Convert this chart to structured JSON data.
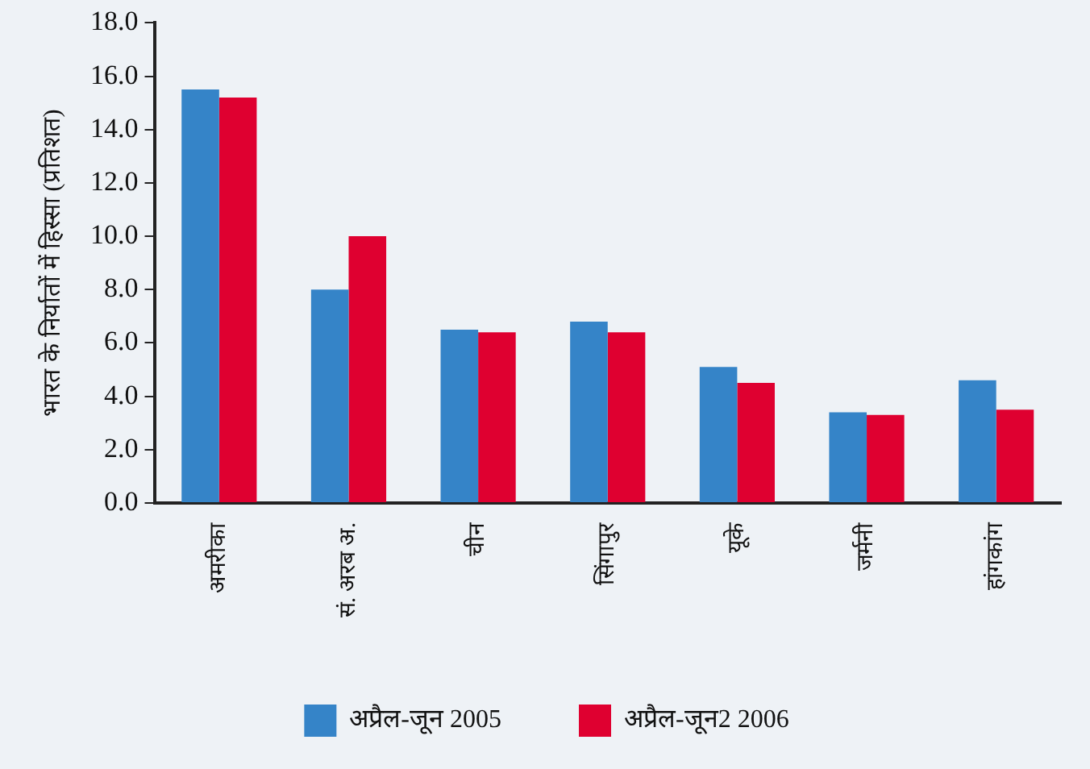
{
  "chart_data": {
    "type": "bar",
    "ylabel": "भारत के निर्यातों में हिस्सा (प्रतिशत)",
    "categories": [
      "अमरीका",
      "सं. अरब अ.",
      "चीन",
      "सिंगापुर",
      "यूके",
      "जर्मनी",
      "हांगकांग"
    ],
    "series": [
      {
        "name": "अप्रैल-जून 2005",
        "color": "#3584c8",
        "values": [
          15.5,
          8.0,
          6.5,
          6.8,
          5.1,
          3.4,
          4.6
        ]
      },
      {
        "name": "अप्रैल-जून2 2006",
        "color": "#df0030",
        "values": [
          15.2,
          10.0,
          6.4,
          6.4,
          4.5,
          3.3,
          3.5
        ]
      }
    ],
    "ylim": [
      0,
      18
    ],
    "yticks": [
      {
        "value": 0,
        "label": "0.0"
      },
      {
        "value": 2,
        "label": "2.0"
      },
      {
        "value": 4,
        "label": "4.0"
      },
      {
        "value": 6,
        "label": "6.0"
      },
      {
        "value": 8,
        "label": "8.0"
      },
      {
        "value": 10,
        "label": "10.0"
      },
      {
        "value": 12,
        "label": "12.0"
      },
      {
        "value": 14,
        "label": "14.0"
      },
      {
        "value": 16,
        "label": "16.0"
      },
      {
        "value": 18,
        "label": "18.0"
      }
    ],
    "grid": false,
    "legend": "bottom"
  }
}
